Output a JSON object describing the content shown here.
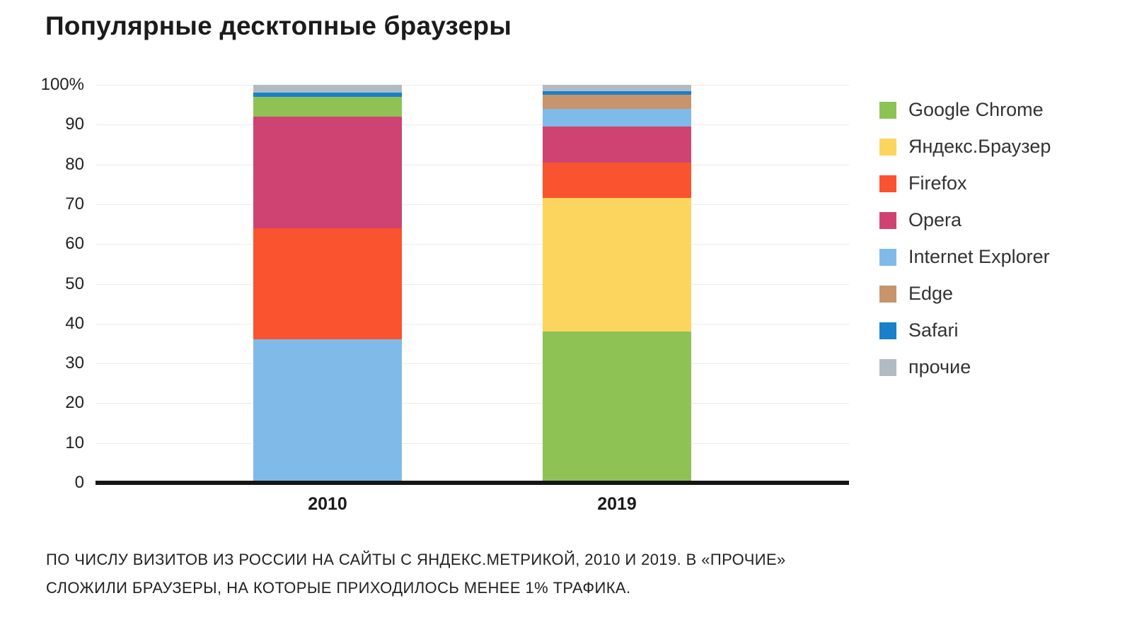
{
  "title": "Популярные десктопные браузеры",
  "footnote": {
    "line1": "ПО ЧИСЛУ ВИЗИТОВ ИЗ РОССИИ НА САЙТЫ С ЯНДЕКС.МЕТРИКОЙ, 2010 И 2019. В «ПРОЧИЕ»",
    "line2": "СЛОЖИЛИ БРАУЗЕРЫ, НА КОТОРЫЕ ПРИХОДИЛОСЬ МЕНЕЕ 1% ТРАФИКА."
  },
  "chart_data": {
    "type": "bar",
    "stacked": true,
    "title": "Популярные десктопные браузеры",
    "xlabel": "",
    "ylabel": "",
    "ylim": [
      0,
      100
    ],
    "grid": true,
    "legend_position": "right",
    "categories": [
      "2010",
      "2019"
    ],
    "series": [
      {
        "name": "Google Chrome",
        "color": "#8EC255",
        "values": [
          5,
          38
        ]
      },
      {
        "name": "Яндекс.Браузер",
        "color": "#FBD55E",
        "values": [
          0,
          33.5
        ]
      },
      {
        "name": "Firefox",
        "color": "#F9532F",
        "values": [
          28,
          9
        ]
      },
      {
        "name": "Opera",
        "color": "#CF4372",
        "values": [
          28,
          9
        ]
      },
      {
        "name": "Internet Explorer",
        "color": "#80BAE8",
        "values": [
          36,
          4.5
        ]
      },
      {
        "name": "Edge",
        "color": "#C7946B",
        "values": [
          0,
          3.5
        ]
      },
      {
        "name": "Safari",
        "color": "#1A80C9",
        "values": [
          1,
          1
        ]
      },
      {
        "name": "прочие",
        "color": "#B3BBC2",
        "values": [
          2,
          1.5
        ]
      }
    ],
    "stack_order_bottom_to_top": {
      "2010": [
        "Internet Explorer",
        "Firefox",
        "Opera",
        "Google Chrome",
        "Safari",
        "прочие"
      ],
      "2019": [
        "Google Chrome",
        "Яндекс.Браузер",
        "Firefox",
        "Opera",
        "Internet Explorer",
        "Edge",
        "Safari",
        "прочие"
      ]
    },
    "yticks": [
      {
        "value": 100,
        "label": "100%"
      },
      {
        "value": 90,
        "label": "90"
      },
      {
        "value": 80,
        "label": "80"
      },
      {
        "value": 70,
        "label": "70"
      },
      {
        "value": 60,
        "label": "60"
      },
      {
        "value": 50,
        "label": "50"
      },
      {
        "value": 40,
        "label": "40"
      },
      {
        "value": 30,
        "label": "30"
      },
      {
        "value": 20,
        "label": "20"
      },
      {
        "value": 10,
        "label": "10"
      },
      {
        "value": 0,
        "label": "0"
      }
    ]
  }
}
